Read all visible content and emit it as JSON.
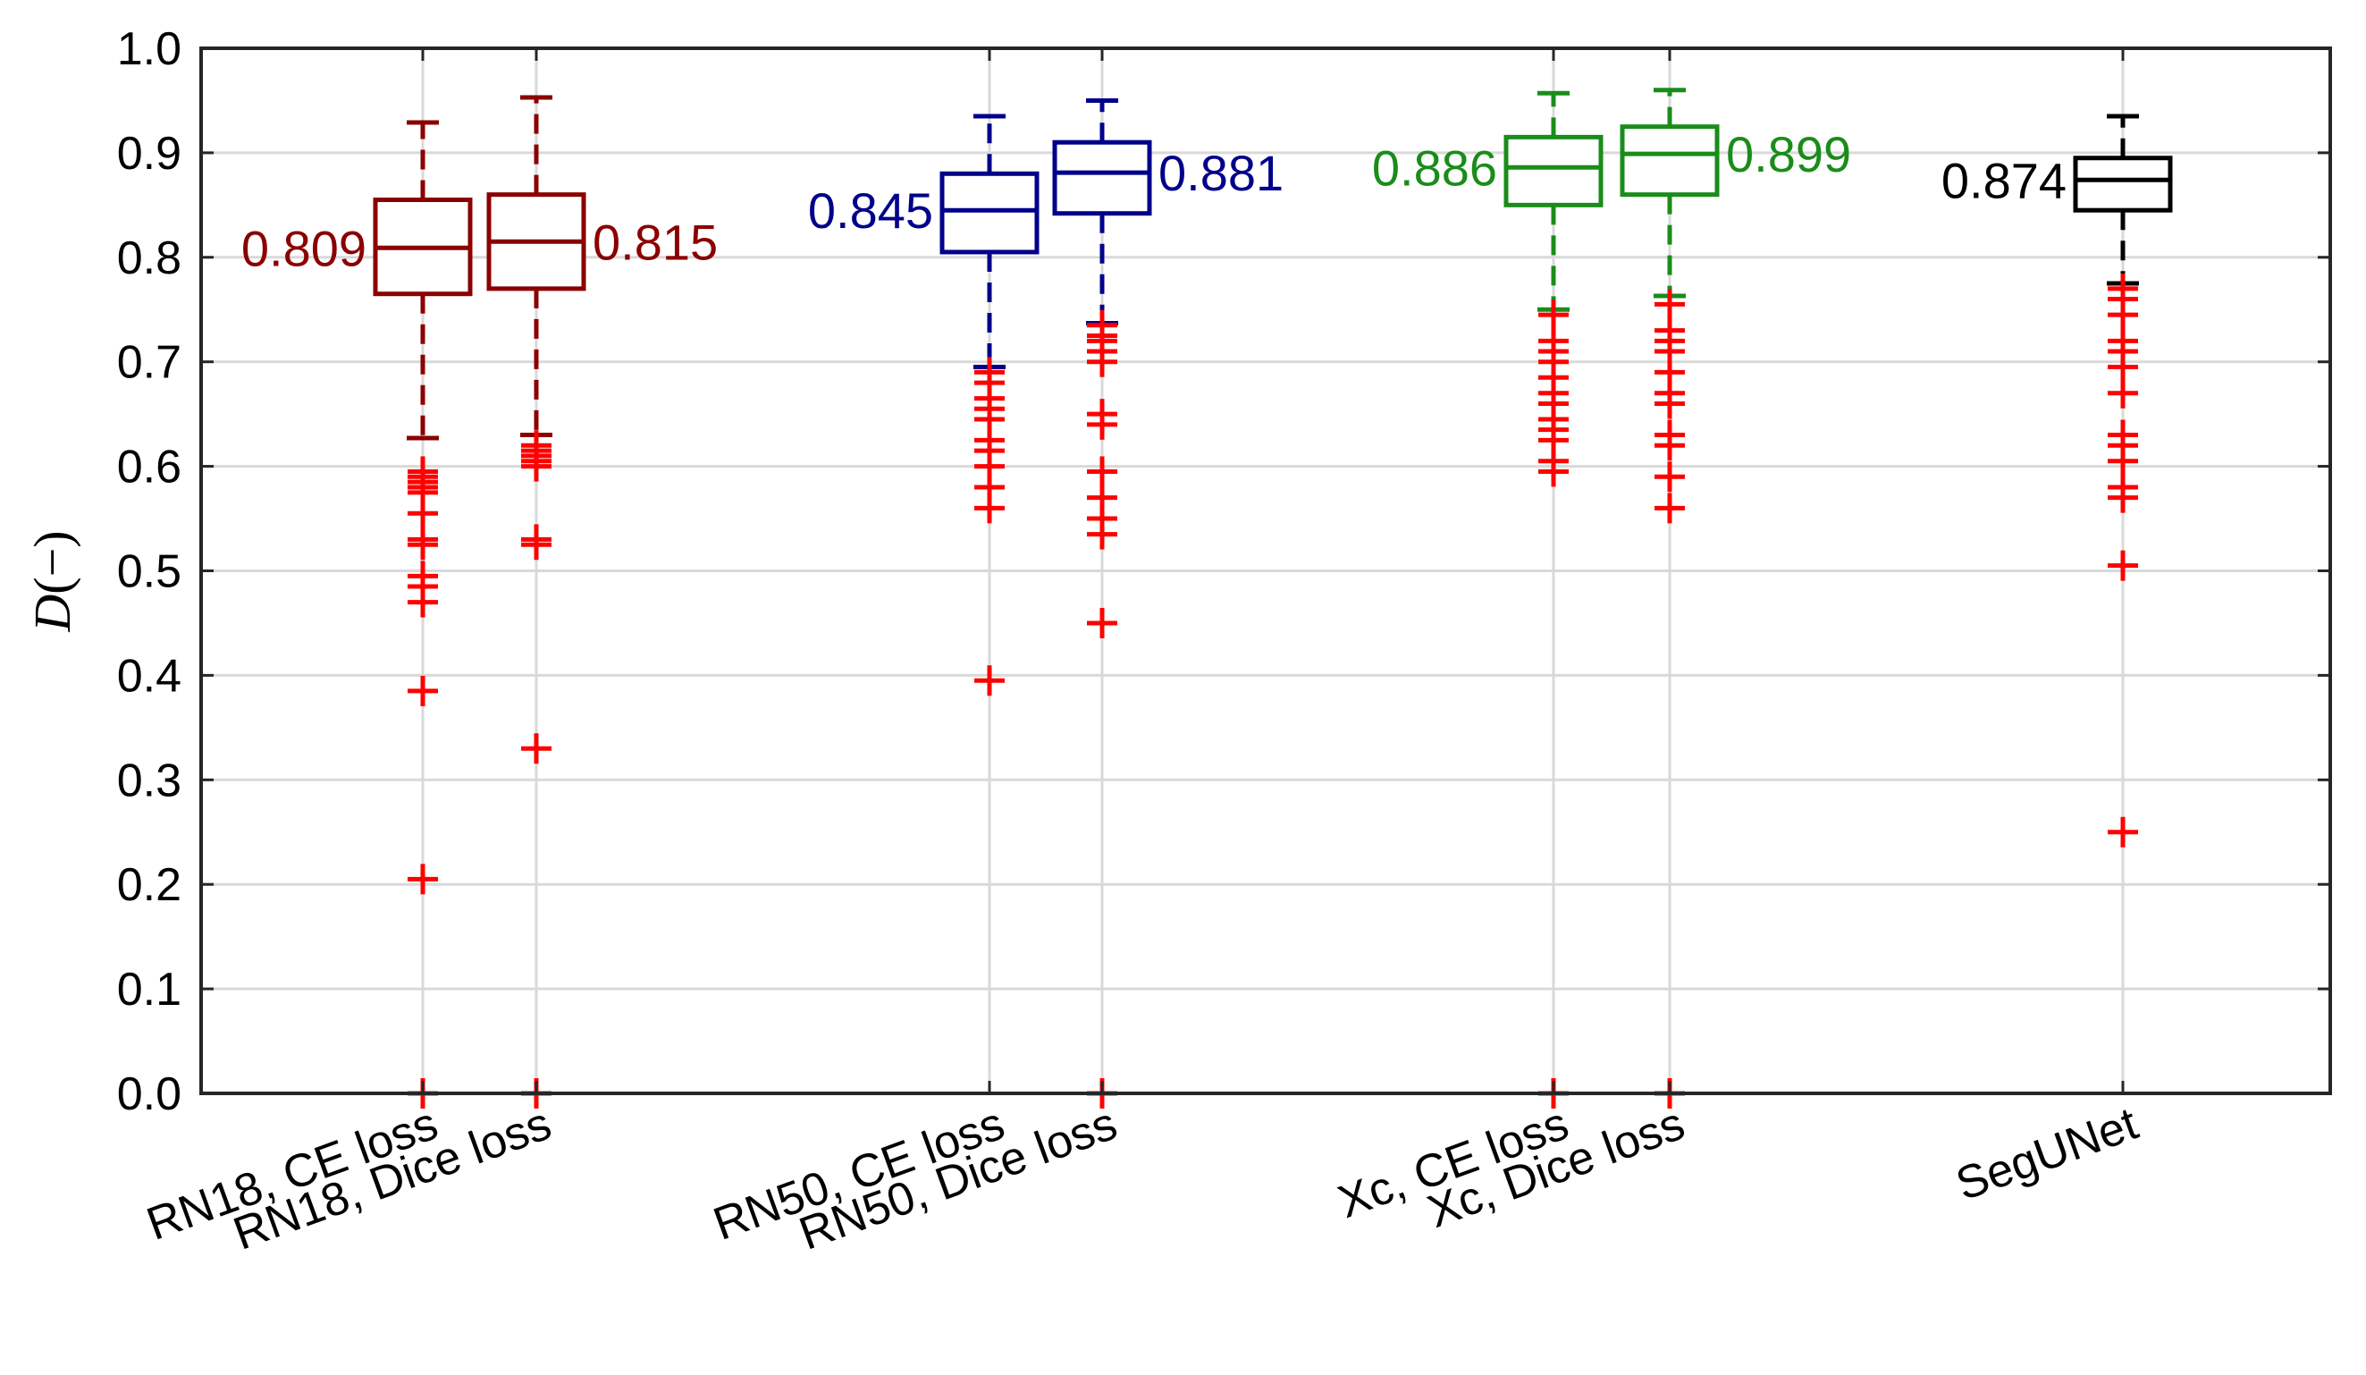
{
  "chart_data": {
    "type": "boxplot",
    "title": "",
    "ylabel_var": "D",
    "ylabel_rest": "(−)",
    "ylim": [
      0.0,
      1.0
    ],
    "yticks": [
      "0.0",
      "0.1",
      "0.2",
      "0.3",
      "0.4",
      "0.5",
      "0.6",
      "0.7",
      "0.8",
      "0.9",
      "1.0"
    ],
    "grid": true,
    "outlier_color": "#ff0000",
    "groups": [
      {
        "name": "RN18",
        "color": "#8b0000",
        "boxes": [
          {
            "label": "RN18, CE loss",
            "median_label": "0.809",
            "median": 0.809,
            "q1": 0.765,
            "q3": 0.855,
            "whisker_low": 0.627,
            "whisker_high": 0.929,
            "label_side": "left",
            "outliers": [
              0.595,
              0.59,
              0.585,
              0.58,
              0.575,
              0.555,
              0.53,
              0.525,
              0.495,
              0.485,
              0.47,
              0.385,
              0.205,
              0.0
            ]
          },
          {
            "label": "RN18, Dice loss",
            "median_label": "0.815",
            "median": 0.815,
            "q1": 0.77,
            "q3": 0.86,
            "whisker_low": 0.63,
            "whisker_high": 0.953,
            "label_side": "right",
            "outliers": [
              0.62,
              0.615,
              0.61,
              0.605,
              0.6,
              0.53,
              0.525,
              0.33,
              0.0
            ]
          }
        ]
      },
      {
        "name": "RN50",
        "color": "#00008b",
        "boxes": [
          {
            "label": "RN50, CE loss",
            "median_label": "0.845",
            "median": 0.845,
            "q1": 0.805,
            "q3": 0.88,
            "whisker_low": 0.695,
            "whisker_high": 0.935,
            "label_side": "left",
            "outliers": [
              0.69,
              0.68,
              0.665,
              0.655,
              0.645,
              0.625,
              0.615,
              0.6,
              0.58,
              0.56,
              0.395
            ]
          },
          {
            "label": "RN50, Dice loss",
            "median_label": "0.881",
            "median": 0.881,
            "q1": 0.842,
            "q3": 0.91,
            "whisker_low": 0.737,
            "whisker_high": 0.95,
            "label_side": "right",
            "outliers": [
              0.735,
              0.725,
              0.72,
              0.71,
              0.7,
              0.65,
              0.64,
              0.595,
              0.57,
              0.55,
              0.535,
              0.45,
              0.0
            ]
          }
        ]
      },
      {
        "name": "Xc",
        "color": "#1a8c1a",
        "boxes": [
          {
            "label": "Xc, CE loss",
            "median_label": "0.886",
            "median": 0.886,
            "q1": 0.85,
            "q3": 0.915,
            "whisker_low": 0.75,
            "whisker_high": 0.957,
            "label_side": "left",
            "outliers": [
              0.745,
              0.72,
              0.71,
              0.7,
              0.685,
              0.67,
              0.66,
              0.645,
              0.635,
              0.625,
              0.605,
              0.595,
              0.0
            ]
          },
          {
            "label": "Xc, Dice loss",
            "median_label": "0.899",
            "median": 0.899,
            "q1": 0.86,
            "q3": 0.925,
            "whisker_low": 0.763,
            "whisker_high": 0.96,
            "label_side": "right",
            "outliers": [
              0.755,
              0.73,
              0.72,
              0.71,
              0.69,
              0.67,
              0.66,
              0.63,
              0.62,
              0.59,
              0.56,
              0.0
            ]
          }
        ]
      },
      {
        "name": "SegUNet",
        "color": "#000000",
        "boxes": [
          {
            "label": "SegUNet",
            "median_label": "0.874",
            "median": 0.874,
            "q1": 0.845,
            "q3": 0.895,
            "whisker_low": 0.775,
            "whisker_high": 0.935,
            "label_side": "left",
            "outliers": [
              0.77,
              0.76,
              0.745,
              0.72,
              0.71,
              0.695,
              0.67,
              0.63,
              0.62,
              0.605,
              0.58,
              0.57,
              0.505,
              0.25
            ]
          }
        ]
      }
    ]
  }
}
